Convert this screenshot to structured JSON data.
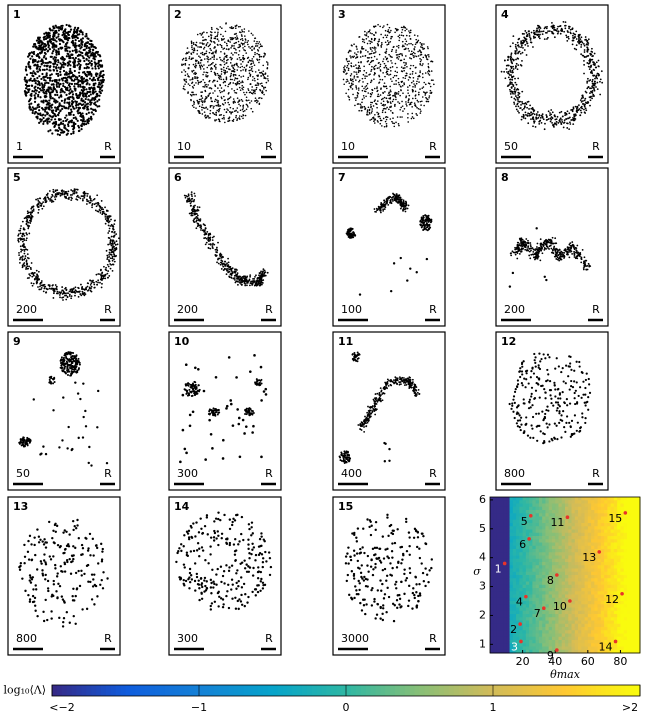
{
  "panels": [
    {
      "label": "1",
      "scale": "1",
      "ref": "R"
    },
    {
      "label": "2",
      "scale": "10",
      "ref": "R"
    },
    {
      "label": "3",
      "scale": "10",
      "ref": "R"
    },
    {
      "label": "4",
      "scale": "50",
      "ref": "R"
    },
    {
      "label": "5",
      "scale": "200",
      "ref": "R"
    },
    {
      "label": "6",
      "scale": "200",
      "ref": "R"
    },
    {
      "label": "7",
      "scale": "100",
      "ref": "R"
    },
    {
      "label": "8",
      "scale": "200",
      "ref": "R"
    },
    {
      "label": "9",
      "scale": "50",
      "ref": "R"
    },
    {
      "label": "10",
      "scale": "300",
      "ref": "R"
    },
    {
      "label": "11",
      "scale": "400",
      "ref": "R"
    },
    {
      "label": "12",
      "scale": "800",
      "ref": "R"
    },
    {
      "label": "13",
      "scale": "800",
      "ref": "R"
    },
    {
      "label": "14",
      "scale": "300",
      "ref": "R"
    },
    {
      "label": "15",
      "scale": "3000",
      "ref": "R"
    }
  ],
  "chart_data": {
    "type": "heatmap",
    "xlabel": "θmax",
    "ylabel": "σ",
    "xlim": [
      0,
      92
    ],
    "ylim": [
      0.7,
      6.1
    ],
    "xticks": [
      20,
      40,
      60,
      80
    ],
    "yticks": [
      1,
      2,
      3,
      4,
      5,
      6
    ],
    "point_color": "#e8332a",
    "points": {
      "labels": [
        "1",
        "2",
        "3",
        "4",
        "5",
        "6",
        "7",
        "8",
        "9",
        "10",
        "11",
        "12",
        "13",
        "14",
        "15"
      ],
      "x": [
        9,
        18.5,
        19,
        22,
        25,
        24,
        33,
        41,
        41,
        49,
        47.5,
        81,
        67,
        77,
        83
      ],
      "y": [
        3.8,
        1.7,
        1.1,
        2.65,
        5.45,
        4.65,
        2.25,
        3.4,
        0.8,
        2.5,
        5.4,
        2.75,
        4.2,
        1.1,
        5.55
      ]
    },
    "colorbar": {
      "label": "log₁₀⟨Λ⟩",
      "lim": [
        -2,
        2
      ],
      "ticks": [
        {
          "value": -2,
          "label": "<−2"
        },
        {
          "value": -1,
          "label": "−1"
        },
        0,
        1,
        {
          "value": 2,
          "label": ">2"
        }
      ]
    }
  }
}
